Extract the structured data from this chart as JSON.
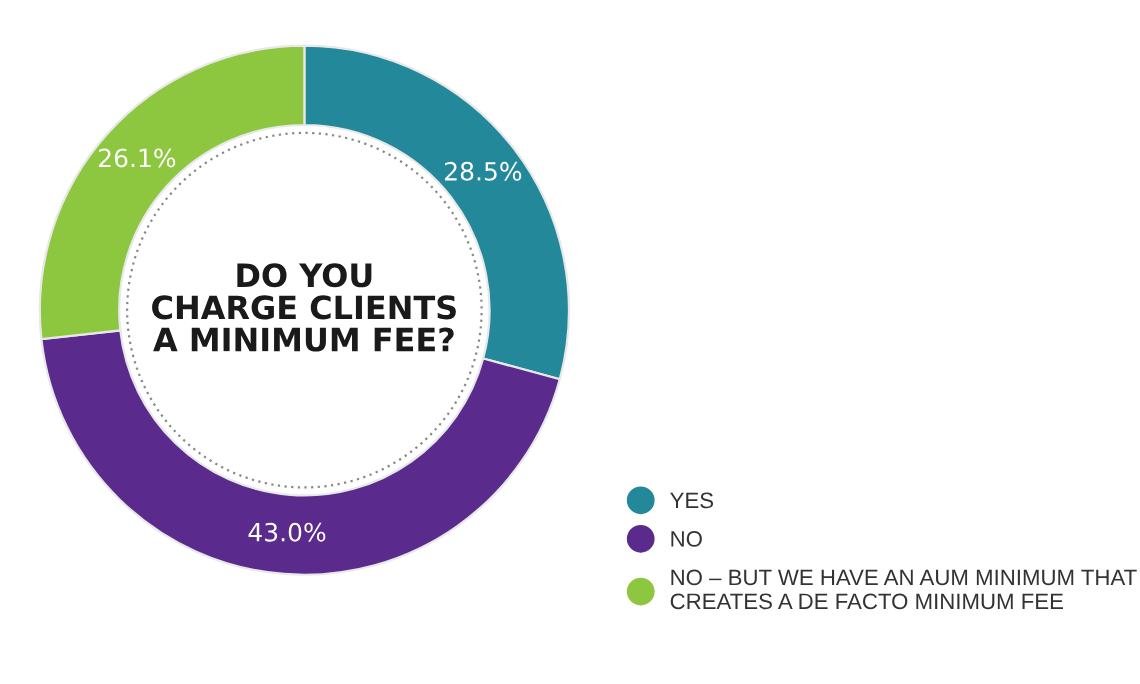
{
  "chart_data": {
    "type": "donut",
    "title": "DO YOU\nCHARGE CLIENTS\nA MINIMUM FEE?",
    "categories": [
      "YES",
      "NO",
      "NO – BUT WE HAVE AN AUM MINIMUM THAT\nCREATES A DE FACTO MINIMUM FEE"
    ],
    "values": [
      28.5,
      43.0,
      26.1
    ],
    "value_labels": [
      "28.5%",
      "43.0%",
      "26.1%"
    ],
    "colors": [
      "#23889a",
      "#5a2a8c",
      "#8dc63f"
    ],
    "legend": "bottom right"
  }
}
